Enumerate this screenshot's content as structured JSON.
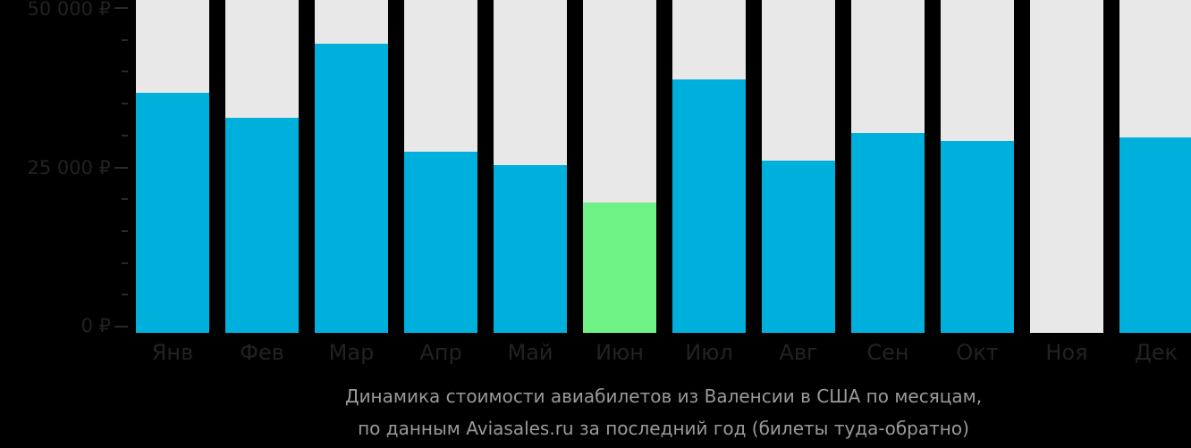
{
  "chart_data": {
    "type": "bar",
    "title": "Динамика стоимости авиабилетов из Валенсии в США по месяцам,",
    "subtitle": "по данным Aviasales.ru за последний год (билеты туда-обратно)",
    "xlabel": "",
    "ylabel": "",
    "ylim": [
      0,
      50000
    ],
    "y_ticks": [
      "0 ₽",
      "25 000 ₽",
      "50 000 ₽"
    ],
    "grid": false,
    "legend": null,
    "categories": [
      "Янв",
      "Фев",
      "Мар",
      "Апр",
      "Май",
      "Июн",
      "Июл",
      "Авг",
      "Сен",
      "Окт",
      "Ноя",
      "Дек"
    ],
    "values": [
      36700,
      32800,
      44400,
      27500,
      25300,
      19500,
      38800,
      26000,
      30400,
      29100,
      0,
      29700
    ],
    "highlight_index": 5,
    "colors": {
      "bar": "#00b0dc",
      "highlight": "#6ef286",
      "background_bar": "#e8e8e8",
      "page_background": "#000000"
    }
  },
  "axis": {
    "y_labels": [
      "50 000 ₽",
      "25 000 ₽",
      "0 ₽"
    ]
  },
  "caption": {
    "line1": "Динамика стоимости авиабилетов из Валенсии в США по месяцам,",
    "line2": "по данным Aviasales.ru за последний год (билеты туда-обратно)"
  }
}
